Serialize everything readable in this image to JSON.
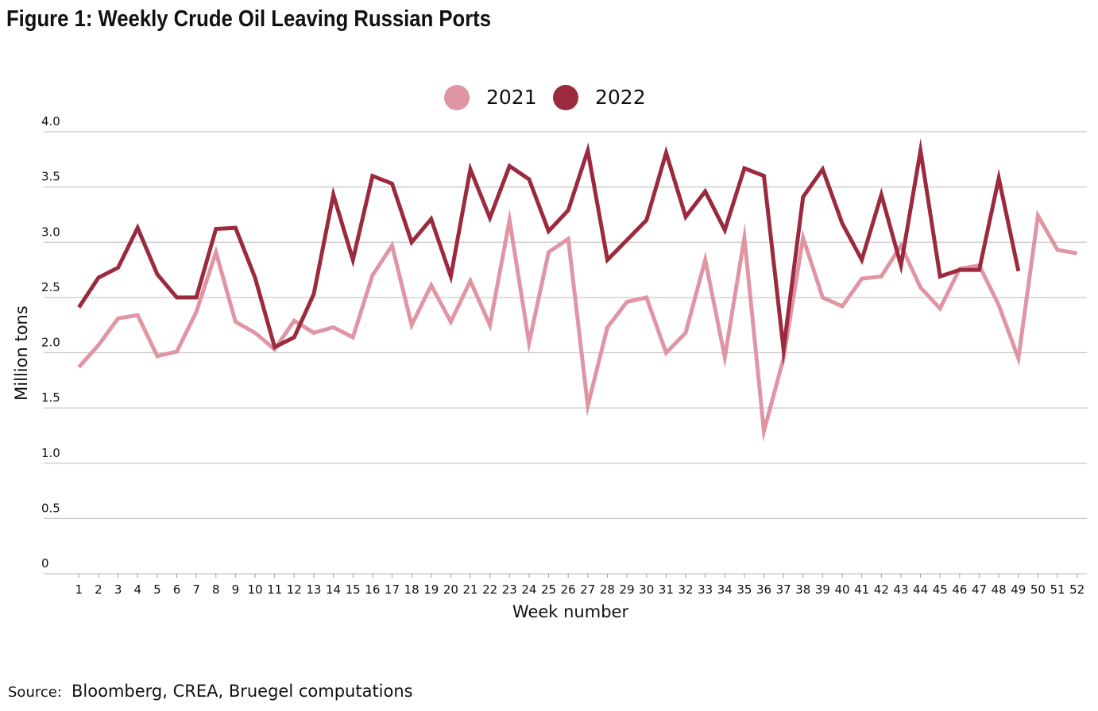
{
  "chart_data": {
    "type": "line",
    "title": "Figure 1: Weekly Crude Oil Leaving Russian Ports",
    "y_label": "Million tons",
    "x_label": "Week number",
    "source_label": "Source:",
    "source": "Bloomberg, CREA, Bruegel computations",
    "categories": [
      "1",
      "2",
      "3",
      "4",
      "5",
      "6",
      "7",
      "8",
      "9",
      "10",
      "11",
      "12",
      "13",
      "14",
      "15",
      "16",
      "17",
      "18",
      "19",
      "20",
      "21",
      "22",
      "23",
      "24",
      "25",
      "26",
      "27",
      "28",
      "29",
      "30",
      "31",
      "32",
      "33",
      "34",
      "35",
      "36",
      "37",
      "38",
      "39",
      "40",
      "41",
      "42",
      "43",
      "44",
      "45",
      "46",
      "47",
      "48",
      "49",
      "50",
      "51",
      "52"
    ],
    "series": [
      {
        "name": "2021",
        "color": "#e095a5",
        "values": [
          1.87,
          2.07,
          2.31,
          2.34,
          1.97,
          2.01,
          2.37,
          2.91,
          2.28,
          2.18,
          2.03,
          2.29,
          2.18,
          2.23,
          2.14,
          2.7,
          2.97,
          2.25,
          2.61,
          2.28,
          2.65,
          2.25,
          3.2,
          2.09,
          2.91,
          3.03,
          1.52,
          2.23,
          2.46,
          2.5,
          2.0,
          2.18,
          2.84,
          1.96,
          3.04,
          1.29,
          1.95,
          3.04,
          2.5,
          2.42,
          2.67,
          2.69,
          2.97,
          2.59,
          2.4,
          2.76,
          2.79,
          2.43,
          1.95,
          3.24,
          2.93,
          2.9
        ]
      },
      {
        "name": "2022",
        "color": "#9b2a3e",
        "values": [
          2.41,
          2.68,
          2.77,
          3.13,
          2.71,
          2.5,
          2.5,
          3.12,
          3.13,
          2.68,
          2.05,
          2.14,
          2.53,
          3.43,
          2.84,
          3.6,
          3.53,
          3.0,
          3.21,
          2.69,
          3.66,
          3.22,
          3.69,
          3.57,
          3.1,
          3.29,
          3.83,
          2.84,
          3.02,
          3.2,
          3.81,
          3.23,
          3.46,
          3.11,
          3.67,
          3.6,
          2.03,
          3.41,
          3.66,
          3.17,
          2.84,
          3.43,
          2.79,
          3.83,
          2.69,
          2.75,
          2.75,
          3.58,
          2.74,
          null,
          null,
          null
        ]
      }
    ],
    "ylim": [
      0,
      4
    ],
    "yticks": [
      0,
      0.5,
      {
        "value": 1,
        "label": "1.0"
      },
      1.5,
      {
        "value": 2,
        "label": "2.0"
      },
      2.5,
      {
        "value": 3,
        "label": "3.0"
      },
      3.5,
      {
        "value": 4,
        "label": "4.0"
      }
    ],
    "grid": true
  }
}
